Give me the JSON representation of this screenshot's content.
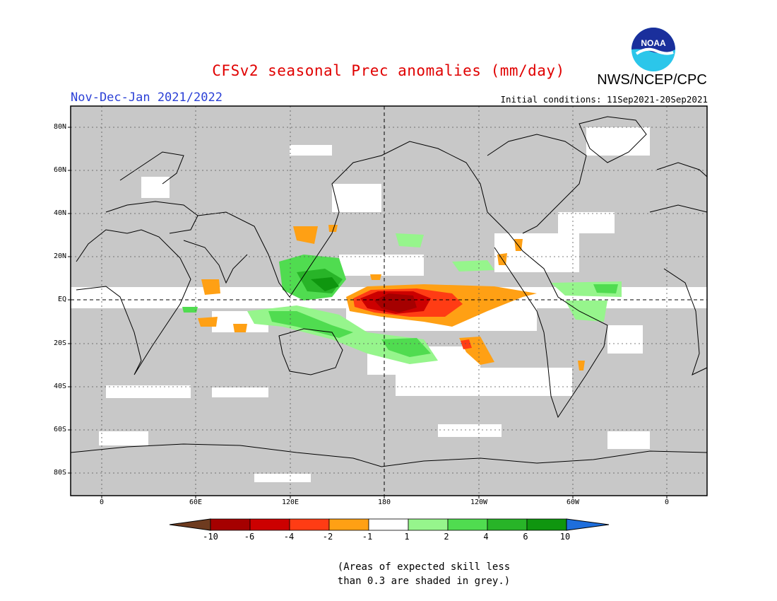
{
  "header": {
    "title": "CFSv2 seasonal Prec anomalies (mm/day)",
    "agency": "NWS/NCEP/CPC",
    "period": "Nov-Dec-Jan 2021/2022",
    "initial_conditions": "Initial conditions: 11Sep2021-20Sep2021",
    "logo_text": "NOAA"
  },
  "map": {
    "latitude_ticks": [
      "80N",
      "60N",
      "40N",
      "20N",
      "EQ",
      "20S",
      "40S",
      "60S",
      "80S"
    ],
    "longitude_ticks": [
      "0",
      "60E",
      "120E",
      "180",
      "120W",
      "60W",
      "0"
    ],
    "grey_color": "#c8c8c8"
  },
  "colorbar": {
    "labels": [
      "-10",
      "-6",
      "-4",
      "-2",
      "-1",
      "1",
      "2",
      "4",
      "6",
      "10"
    ],
    "colors": [
      "#6e3b1f",
      "#a50000",
      "#cc0000",
      "#ff3c14",
      "#ffa014",
      "#ffffff",
      "#96f58c",
      "#50dc50",
      "#28b428",
      "#0f960f",
      "#1e6edc"
    ]
  },
  "note": {
    "line1": "(Areas of expected skill less",
    "line2": "than 0.3 are shaded in grey.)"
  }
}
